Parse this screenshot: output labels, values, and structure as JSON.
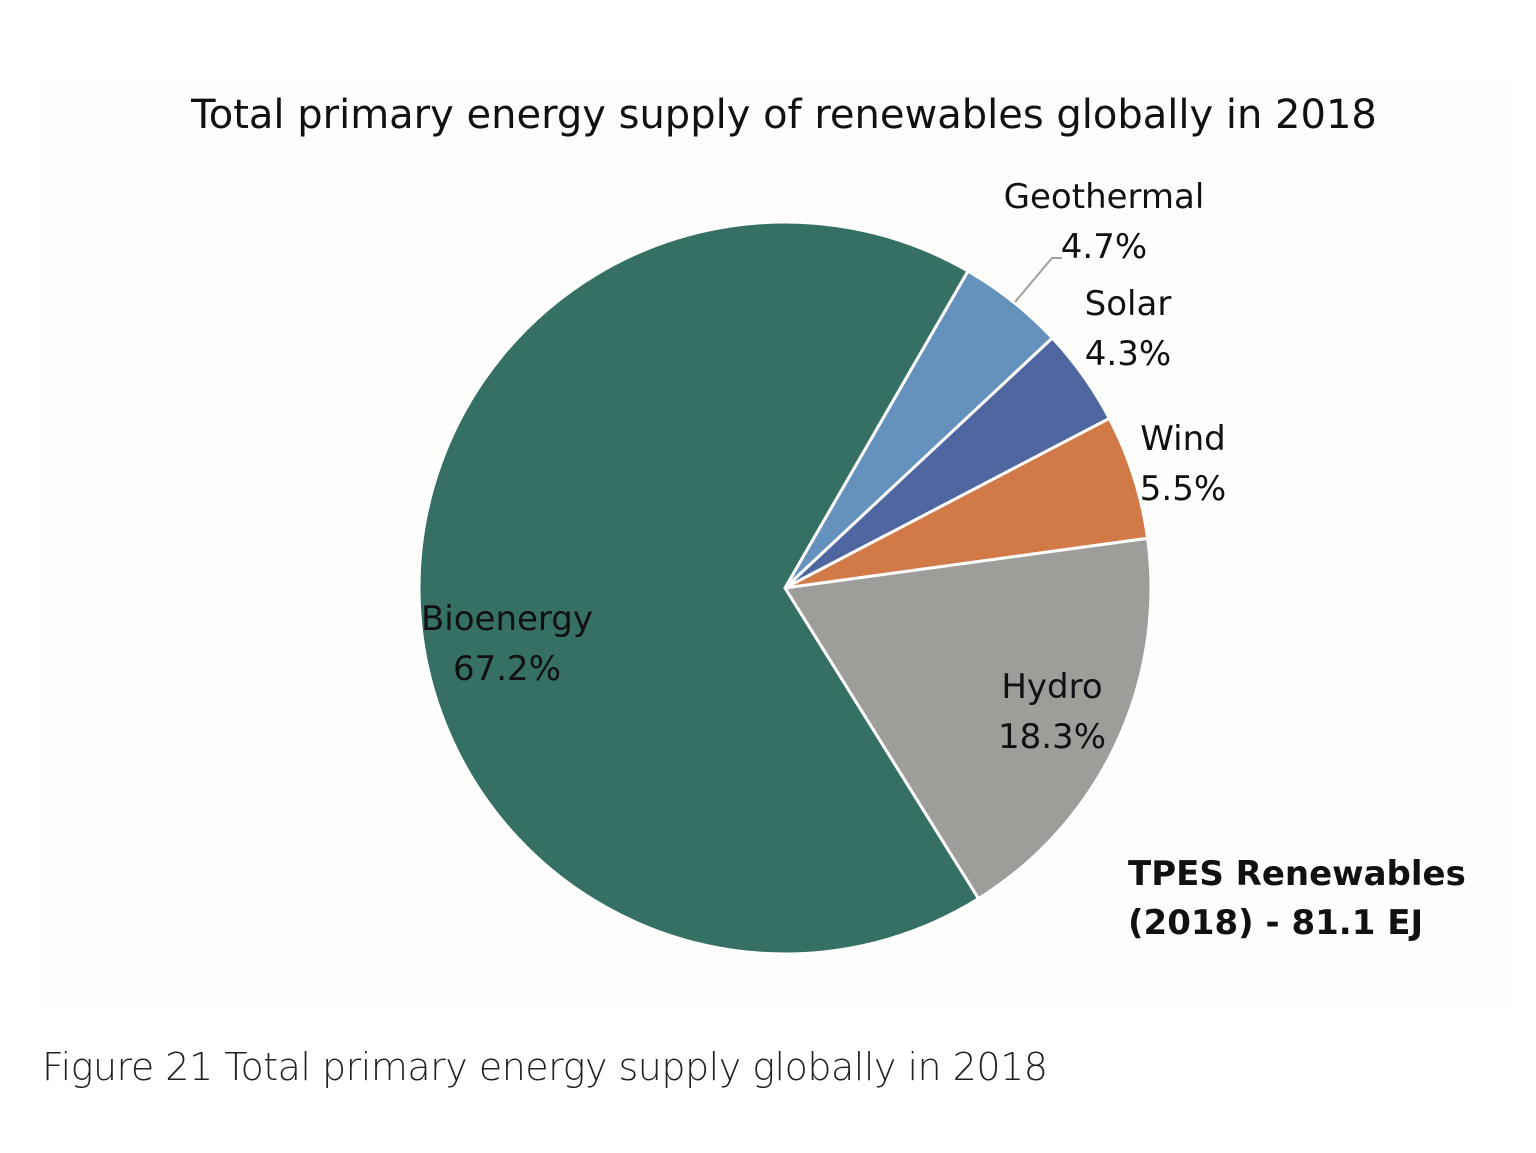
{
  "chart_data": {
    "type": "pie",
    "title": "Total primary energy supply of renewables globally in 2018",
    "slices": [
      {
        "label": "Geothermal",
        "value": 4.7,
        "display": "4.7%",
        "color": "#6591bd"
      },
      {
        "label": "Solar",
        "value": 4.3,
        "display": "4.3%",
        "color": "#4f66a0"
      },
      {
        "label": "Wind",
        "value": 5.5,
        "display": "5.5%",
        "color": "#d27a47"
      },
      {
        "label": "Hydro",
        "value": 18.3,
        "display": "18.3%",
        "color": "#9d9e99"
      },
      {
        "label": "Bioenergy",
        "value": 67.2,
        "display": "67.2%",
        "color": "#367064"
      }
    ],
    "annotation": [
      "TPES Renewables",
      "(2018) - 81.1 EJ"
    ]
  },
  "caption": "Figure 21 Total primary energy supply globally in 2018"
}
